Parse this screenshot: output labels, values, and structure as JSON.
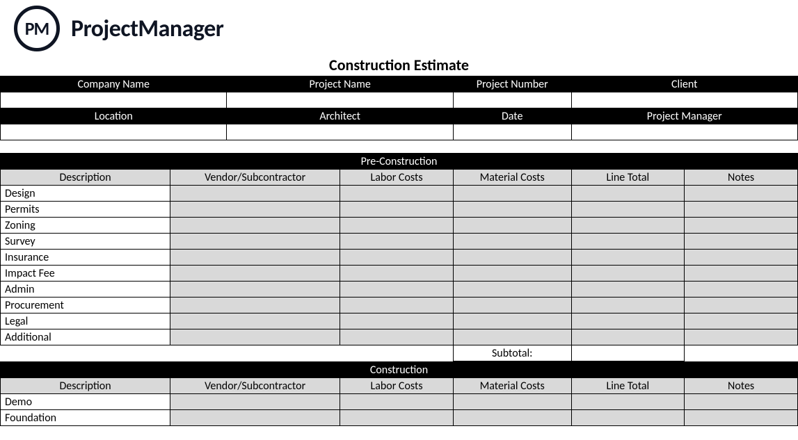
{
  "brand": {
    "logo_initials": "PM",
    "name": "ProjectManager"
  },
  "title": "Construction Estimate",
  "info_headers_row1": [
    "Company Name",
    "Project Name",
    "Project Number",
    "Client"
  ],
  "info_values_row1": [
    "",
    "",
    "",
    ""
  ],
  "info_headers_row2": [
    "Location",
    "Architect",
    "Date",
    "Project Manager"
  ],
  "info_values_row2": [
    "",
    "",
    "",
    ""
  ],
  "section1": {
    "title": "Pre-Construction",
    "columns": [
      "Description",
      "Vendor/Subcontractor",
      "Labor Costs",
      "Material Costs",
      "Line Total",
      "Notes"
    ],
    "rows": [
      "Design",
      "Permits",
      "Zoning",
      "Survey",
      "Insurance",
      "Impact Fee",
      "Admin",
      "Procurement",
      "Legal",
      "Additional"
    ],
    "subtotal_label": "Subtotal:"
  },
  "section2": {
    "title": "Construction",
    "columns": [
      "Description",
      "Vendor/Subcontractor",
      "Labor Costs",
      "Material Costs",
      "Line Total",
      "Notes"
    ],
    "rows": [
      "Demo",
      "Foundation"
    ]
  },
  "layout": {
    "info_col_widths_pct": [
      28.4,
      28.4,
      14.8,
      28.4
    ],
    "line_col_widths_pct": [
      21.3,
      21.3,
      14.2,
      14.8,
      14.2,
      14.2
    ]
  },
  "colors": {
    "header_bg": "#000000",
    "header_fg": "#ffffff",
    "sub_bg": "#d9d9d9",
    "border": "#000000",
    "page_bg": "#ffffff",
    "brand": "#0f1523"
  }
}
